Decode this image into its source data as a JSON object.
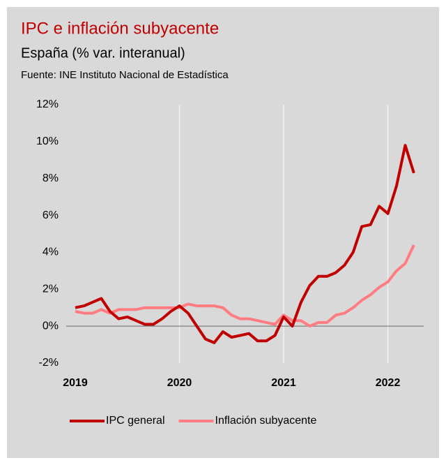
{
  "chart_data": {
    "type": "line",
    "title": "IPC e inflación subyacente",
    "subtitle": "España (% var. interanual)",
    "source": "Fuente: INE Instituto Nacional de Estadística",
    "categories": [
      "2019",
      null,
      null,
      null,
      null,
      null,
      null,
      null,
      null,
      null,
      null,
      null,
      "2020",
      null,
      null,
      null,
      null,
      null,
      null,
      null,
      null,
      null,
      null,
      null,
      "2021",
      null,
      null,
      null,
      null,
      null,
      null,
      null,
      null,
      null,
      null,
      null,
      "2022",
      null,
      null,
      null
    ],
    "series": [
      {
        "name": "IPC general",
        "color": "#c00000",
        "values": [
          1.0,
          1.1,
          1.3,
          1.5,
          0.8,
          0.4,
          0.5,
          0.3,
          0.1,
          0.1,
          0.4,
          0.8,
          1.1,
          0.7,
          0.0,
          -0.7,
          -0.9,
          -0.3,
          -0.6,
          -0.5,
          -0.4,
          -0.8,
          -0.8,
          -0.5,
          0.5,
          0.0,
          1.3,
          2.2,
          2.7,
          2.7,
          2.9,
          3.3,
          4.0,
          5.4,
          5.5,
          6.5,
          6.1,
          7.6,
          9.8,
          8.3
        ]
      },
      {
        "name": "Inflación subyacente",
        "color": "#ff7c80",
        "values": [
          0.8,
          0.7,
          0.7,
          0.9,
          0.7,
          0.9,
          0.9,
          0.9,
          1.0,
          1.0,
          1.0,
          1.0,
          1.0,
          1.2,
          1.1,
          1.1,
          1.1,
          1.0,
          0.6,
          0.4,
          0.4,
          0.3,
          0.2,
          0.1,
          0.6,
          0.3,
          0.3,
          0.0,
          0.2,
          0.2,
          0.6,
          0.7,
          1.0,
          1.4,
          1.7,
          2.1,
          2.4,
          3.0,
          3.4,
          4.4
        ]
      }
    ],
    "ylim": [
      -2,
      12
    ],
    "yticks": [
      {
        "value": -2,
        "label": "-2%"
      },
      {
        "value": 0,
        "label": "0%"
      },
      {
        "value": 2,
        "label": "2%"
      },
      {
        "value": 4,
        "label": "4%"
      },
      {
        "value": 6,
        "label": "6%"
      },
      {
        "value": 8,
        "label": "8%"
      },
      {
        "value": 10,
        "label": "10%"
      },
      {
        "value": 12,
        "label": "12%"
      }
    ],
    "legend": "bottom"
  }
}
